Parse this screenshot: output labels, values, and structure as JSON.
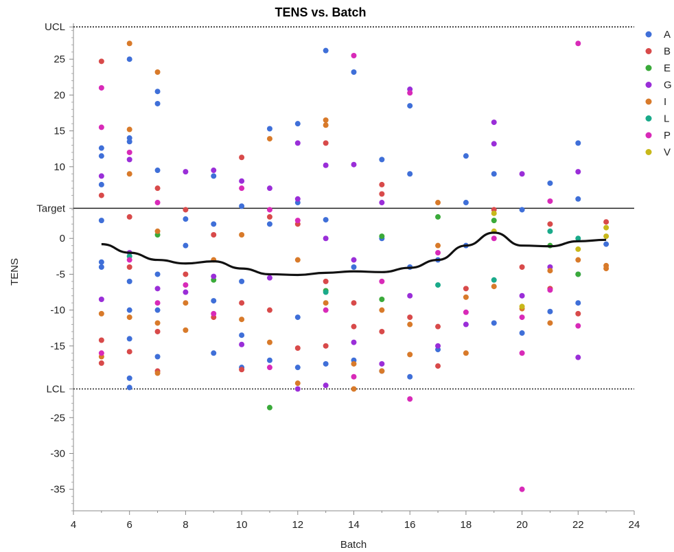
{
  "chart_data": {
    "type": "scatter",
    "title": "TENS vs. Batch",
    "xlabel": "Batch",
    "ylabel": "TENS",
    "xlim": [
      4,
      24
    ],
    "ylim": [
      -38,
      30
    ],
    "x_ticks": [
      4,
      6,
      8,
      10,
      12,
      14,
      16,
      18,
      20,
      22,
      24
    ],
    "y_ticks": [
      -35,
      -30,
      -25,
      -15,
      -10,
      -5,
      0,
      10,
      15,
      20,
      25
    ],
    "reference_lines": [
      {
        "label": "UCL",
        "value": 29.5,
        "style": "dotted"
      },
      {
        "label": "Target",
        "value": 4.2,
        "style": "solid"
      },
      {
        "label": "LCL",
        "value": -21,
        "style": "dotted"
      }
    ],
    "legend_position": "right",
    "series": [
      {
        "name": "A",
        "color": "#3f6fd8",
        "points": [
          [
            5,
            12.6
          ],
          [
            5,
            11.5
          ],
          [
            5,
            7.5
          ],
          [
            5,
            2.5
          ],
          [
            5,
            -4
          ],
          [
            5,
            -3.3
          ],
          [
            6,
            25
          ],
          [
            6,
            14
          ],
          [
            6,
            13.5
          ],
          [
            6,
            -6
          ],
          [
            6,
            -10
          ],
          [
            6,
            -14
          ],
          [
            6,
            -19.5
          ],
          [
            6,
            -20.8
          ],
          [
            7,
            20.5
          ],
          [
            7,
            18.8
          ],
          [
            7,
            9.5
          ],
          [
            7,
            -5
          ],
          [
            7,
            -10
          ],
          [
            7,
            -16.5
          ],
          [
            8,
            2.7
          ],
          [
            8,
            -1
          ],
          [
            9,
            8.7
          ],
          [
            9,
            2
          ],
          [
            9,
            -8.7
          ],
          [
            9,
            -16
          ],
          [
            10,
            4.5
          ],
          [
            10,
            -6
          ],
          [
            10,
            -13.5
          ],
          [
            10,
            -18
          ],
          [
            11,
            15.3
          ],
          [
            11,
            2
          ],
          [
            11,
            -17
          ],
          [
            12,
            16
          ],
          [
            12,
            5
          ],
          [
            12,
            -11
          ],
          [
            12,
            -18
          ],
          [
            13,
            26.2
          ],
          [
            13,
            2.6
          ],
          [
            13,
            -17.5
          ],
          [
            14,
            23.2
          ],
          [
            14,
            -4
          ],
          [
            14,
            -17
          ],
          [
            15,
            11
          ],
          [
            15,
            0
          ],
          [
            15,
            -18.5
          ],
          [
            16,
            18.5
          ],
          [
            16,
            9
          ],
          [
            16,
            -4
          ],
          [
            16,
            -19.3
          ],
          [
            17,
            -3
          ],
          [
            17,
            -15.5
          ],
          [
            18,
            11.5
          ],
          [
            18,
            5
          ],
          [
            18,
            -1
          ],
          [
            19,
            9
          ],
          [
            19,
            -11.8
          ],
          [
            20,
            4
          ],
          [
            20,
            -13.2
          ],
          [
            21,
            7.7
          ],
          [
            21,
            -10.2
          ],
          [
            22,
            13.3
          ],
          [
            22,
            5.5
          ],
          [
            22,
            -5
          ],
          [
            22,
            -9
          ],
          [
            23,
            -0.8
          ]
        ]
      },
      {
        "name": "B",
        "color": "#d84a4a",
        "points": [
          [
            5,
            24.7
          ],
          [
            5,
            6
          ],
          [
            5,
            -14.2
          ],
          [
            5,
            -17.4
          ],
          [
            6,
            3
          ],
          [
            6,
            -4
          ],
          [
            6,
            -15.8
          ],
          [
            7,
            7
          ],
          [
            7,
            -13
          ],
          [
            7,
            -18.5
          ],
          [
            8,
            4
          ],
          [
            8,
            -5
          ],
          [
            9,
            -11
          ],
          [
            9,
            0.5
          ],
          [
            10,
            11.3
          ],
          [
            10,
            -9
          ],
          [
            10,
            -18.3
          ],
          [
            11,
            3
          ],
          [
            11,
            -10
          ],
          [
            12,
            -15.3
          ],
          [
            12,
            2
          ],
          [
            13,
            13.3
          ],
          [
            13,
            -6
          ],
          [
            13,
            -15
          ],
          [
            14,
            -9
          ],
          [
            14,
            -12.3
          ],
          [
            15,
            7.5
          ],
          [
            15,
            6.2
          ],
          [
            15,
            -13
          ],
          [
            16,
            -11
          ],
          [
            17,
            -12.3
          ],
          [
            17,
            -17.8
          ],
          [
            18,
            -7
          ],
          [
            19,
            4
          ],
          [
            20,
            -4
          ],
          [
            21,
            2
          ],
          [
            21,
            -7
          ],
          [
            22,
            -10.5
          ],
          [
            23,
            2.3
          ]
        ]
      },
      {
        "name": "E",
        "color": "#3aaa3a",
        "points": [
          [
            7,
            0.5
          ],
          [
            9,
            -5.8
          ],
          [
            11,
            -23.6
          ],
          [
            13,
            -7.3
          ],
          [
            15,
            0.3
          ],
          [
            15,
            -8.5
          ],
          [
            17,
            3
          ],
          [
            19,
            2.5
          ],
          [
            21,
            -1
          ],
          [
            22,
            -5
          ]
        ]
      },
      {
        "name": "G",
        "color": "#9a2ed8",
        "points": [
          [
            5,
            8.7
          ],
          [
            5,
            -8.5
          ],
          [
            6,
            11
          ],
          [
            6,
            -2
          ],
          [
            7,
            -7
          ],
          [
            8,
            9.3
          ],
          [
            8,
            -7.5
          ],
          [
            9,
            9.5
          ],
          [
            9,
            -5.3
          ],
          [
            10,
            8
          ],
          [
            10,
            -14.8
          ],
          [
            11,
            7
          ],
          [
            11,
            -5.5
          ],
          [
            12,
            13.3
          ],
          [
            12,
            5.5
          ],
          [
            12,
            -21
          ],
          [
            13,
            10.2
          ],
          [
            13,
            0
          ],
          [
            13,
            -20.5
          ],
          [
            14,
            10.3
          ],
          [
            14,
            -3
          ],
          [
            14,
            -14.5
          ],
          [
            15,
            5
          ],
          [
            15,
            -17.5
          ],
          [
            16,
            20.8
          ],
          [
            16,
            -8
          ],
          [
            17,
            -15
          ],
          [
            18,
            -12
          ],
          [
            19,
            16.2
          ],
          [
            19,
            13.2
          ],
          [
            20,
            9
          ],
          [
            20,
            -8
          ],
          [
            21,
            -4
          ],
          [
            22,
            9.3
          ],
          [
            22,
            -16.6
          ]
        ]
      },
      {
        "name": "I",
        "color": "#d87a2a",
        "points": [
          [
            5,
            -10.5
          ],
          [
            5,
            -16.5
          ],
          [
            6,
            27.2
          ],
          [
            6,
            15.2
          ],
          [
            6,
            9
          ],
          [
            6,
            -11
          ],
          [
            7,
            23.2
          ],
          [
            7,
            1
          ],
          [
            7,
            -11.8
          ],
          [
            7,
            -18.8
          ],
          [
            8,
            -9
          ],
          [
            8,
            -12.8
          ],
          [
            9,
            -3
          ],
          [
            10,
            0.5
          ],
          [
            10,
            -11.3
          ],
          [
            11,
            13.9
          ],
          [
            11,
            -14.5
          ],
          [
            12,
            -3
          ],
          [
            12,
            -20.2
          ],
          [
            13,
            16.5
          ],
          [
            13,
            15.8
          ],
          [
            13,
            -9
          ],
          [
            14,
            -17.5
          ],
          [
            14,
            -21
          ],
          [
            15,
            -18.5
          ],
          [
            15,
            -10
          ],
          [
            16,
            -16.2
          ],
          [
            16,
            -12
          ],
          [
            17,
            5
          ],
          [
            17,
            -1
          ],
          [
            18,
            -8.2
          ],
          [
            18,
            -16
          ],
          [
            19,
            -6.7
          ],
          [
            20,
            -9.8
          ],
          [
            21,
            -4.5
          ],
          [
            21,
            -11.8
          ],
          [
            22,
            -3
          ],
          [
            23,
            -3.8
          ],
          [
            23,
            -4.2
          ]
        ]
      },
      {
        "name": "L",
        "color": "#1aaa8a",
        "points": [
          [
            6,
            -2.5
          ],
          [
            13,
            -7.5
          ],
          [
            17,
            -6.5
          ],
          [
            19,
            -5.8
          ],
          [
            21,
            1
          ],
          [
            22,
            0
          ]
        ]
      },
      {
        "name": "P",
        "color": "#d82ab8",
        "points": [
          [
            5,
            21
          ],
          [
            5,
            15.5
          ],
          [
            5,
            -16
          ],
          [
            6,
            12
          ],
          [
            6,
            -3
          ],
          [
            7,
            5
          ],
          [
            7,
            -9
          ],
          [
            8,
            -6.5
          ],
          [
            9,
            -10.5
          ],
          [
            10,
            7
          ],
          [
            11,
            4
          ],
          [
            11,
            -18
          ],
          [
            12,
            2.5
          ],
          [
            13,
            -10
          ],
          [
            14,
            25.5
          ],
          [
            14,
            -19.3
          ],
          [
            15,
            -6
          ],
          [
            16,
            -22.4
          ],
          [
            16,
            20.3
          ],
          [
            17,
            -2
          ],
          [
            18,
            -10.3
          ],
          [
            19,
            0
          ],
          [
            20,
            -35
          ],
          [
            20,
            -16
          ],
          [
            20,
            -11
          ],
          [
            21,
            5.2
          ],
          [
            21,
            -7.2
          ],
          [
            22,
            27.2
          ],
          [
            22,
            -12.2
          ]
        ]
      },
      {
        "name": "V",
        "color": "#c8b81a",
        "points": [
          [
            19,
            3.5
          ],
          [
            19,
            1
          ],
          [
            20,
            -9.5
          ],
          [
            22,
            -1.5
          ],
          [
            23,
            1.5
          ],
          [
            23,
            0.3
          ]
        ]
      }
    ],
    "fit_line": {
      "color": "#111111",
      "points": [
        [
          5,
          -0.8
        ],
        [
          6,
          -2
        ],
        [
          7,
          -3
        ],
        [
          8,
          -3.5
        ],
        [
          9,
          -3.2
        ],
        [
          10,
          -4.2
        ],
        [
          11,
          -5
        ],
        [
          12,
          -5.1
        ],
        [
          13,
          -4.8
        ],
        [
          14,
          -4.6
        ],
        [
          15,
          -4.7
        ],
        [
          16,
          -4.1
        ],
        [
          17,
          -3
        ],
        [
          18,
          -1
        ],
        [
          19,
          0.8
        ],
        [
          20,
          -1
        ],
        [
          21,
          -1.1
        ],
        [
          22,
          -0.4
        ],
        [
          23,
          -0.2
        ]
      ]
    }
  }
}
